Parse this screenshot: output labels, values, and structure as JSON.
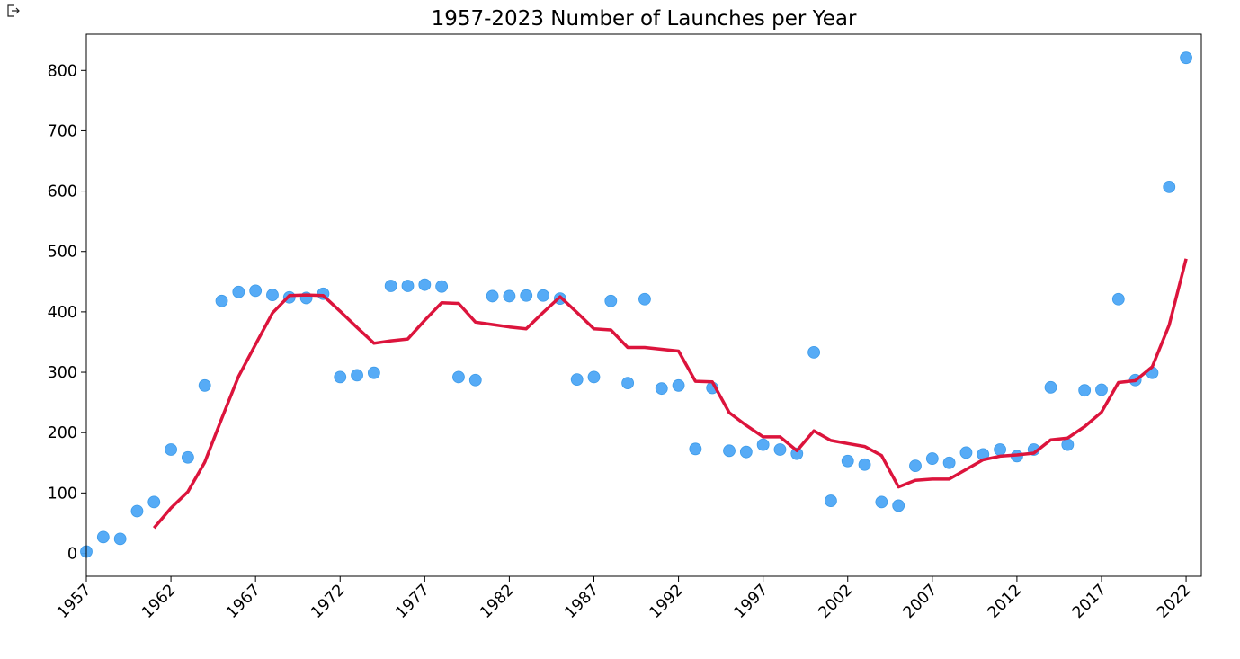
{
  "toolbar": {
    "export_icon": "export-icon"
  },
  "chart_data": {
    "type": "scatter",
    "title": "1957-2023 Number of Launches per Year",
    "xlabel": "",
    "ylabel": "",
    "xlim": [
      1957,
      2022.9
    ],
    "ylim": [
      -38,
      860
    ],
    "x_ticks": [
      1957,
      1962,
      1967,
      1972,
      1977,
      1982,
      1987,
      1992,
      1997,
      2002,
      2007,
      2012,
      2017,
      2022
    ],
    "x_tick_labels": [
      "1957",
      "1962",
      "1967",
      "1972",
      "1977",
      "1982",
      "1987",
      "1992",
      "1997",
      "2002",
      "2007",
      "2012",
      "2017",
      "2022"
    ],
    "y_ticks": [
      0,
      100,
      200,
      300,
      400,
      500,
      600,
      700,
      800
    ],
    "y_tick_labels": [
      "0",
      "100",
      "200",
      "300",
      "400",
      "500",
      "600",
      "700",
      "800"
    ],
    "grid": false,
    "legend": "none",
    "series": [
      {
        "type": "scatter",
        "color": "#4da6f5",
        "x": [
          1957,
          1958,
          1959,
          1960,
          1961,
          1962,
          1963,
          1964,
          1965,
          1966,
          1967,
          1968,
          1969,
          1970,
          1971,
          1972,
          1973,
          1974,
          1975,
          1976,
          1977,
          1978,
          1979,
          1980,
          1981,
          1982,
          1983,
          1984,
          1985,
          1986,
          1987,
          1988,
          1989,
          1990,
          1991,
          1992,
          1993,
          1994,
          1995,
          1996,
          1997,
          1998,
          1999,
          2000,
          2001,
          2002,
          2003,
          2004,
          2005,
          2006,
          2007,
          2008,
          2009,
          2010,
          2011,
          2012,
          2013,
          2014,
          2015,
          2016,
          2017,
          2018,
          2019,
          2020,
          2021,
          2022
        ],
        "y": [
          3,
          27,
          24,
          70,
          85,
          172,
          159,
          278,
          418,
          433,
          435,
          428,
          424,
          423,
          430,
          292,
          295,
          299,
          443,
          443,
          445,
          442,
          292,
          287,
          426,
          426,
          427,
          427,
          422,
          288,
          292,
          418,
          282,
          421,
          273,
          278,
          173,
          274,
          170,
          168,
          180,
          172,
          165,
          333,
          87,
          153,
          147,
          85,
          79,
          145,
          157,
          150,
          167,
          164,
          172,
          161,
          172,
          275,
          180,
          270,
          271,
          421,
          287,
          299,
          607,
          821
        ]
      },
      {
        "type": "line",
        "color": "#dc143c",
        "x": [
          1961,
          1962,
          1963,
          1964,
          1965,
          1966,
          1967,
          1968,
          1969,
          1970,
          1971,
          1972,
          1973,
          1974,
          1975,
          1976,
          1977,
          1978,
          1979,
          1980,
          1981,
          1982,
          1983,
          1984,
          1985,
          1986,
          1987,
          1988,
          1989,
          1990,
          1991,
          1992,
          1993,
          1994,
          1995,
          1996,
          1997,
          1998,
          1999,
          2000,
          2001,
          2002,
          2003,
          2004,
          2005,
          2006,
          2007,
          2008,
          2009,
          2010,
          2011,
          2012,
          2013,
          2014,
          2015,
          2016,
          2017,
          2018,
          2019,
          2020,
          2021,
          2022
        ],
        "y": [
          42,
          75,
          102,
          151,
          223,
          293,
          346,
          398,
          427,
          428,
          427,
          401,
          374,
          348,
          352,
          355,
          386,
          415,
          414,
          383,
          379,
          375,
          372,
          399,
          425,
          399,
          372,
          370,
          341,
          341,
          338,
          335,
          285,
          284,
          233,
          212,
          193,
          193,
          170,
          203,
          187,
          182,
          177,
          162,
          110,
          121,
          123,
          123,
          139,
          155,
          161,
          163,
          166,
          188,
          191,
          210,
          234,
          283,
          286,
          309,
          378,
          488
        ]
      }
    ]
  }
}
